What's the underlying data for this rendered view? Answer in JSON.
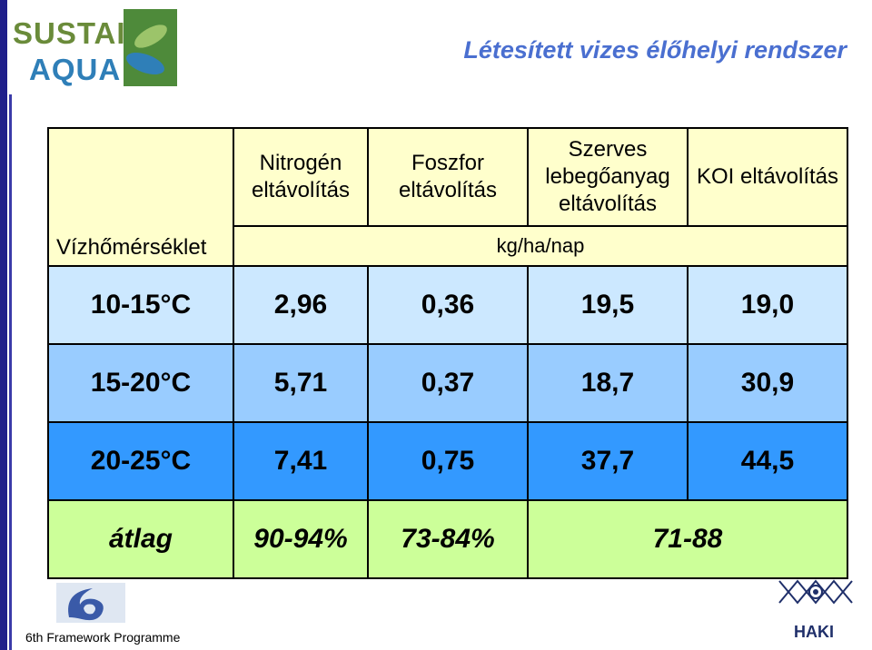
{
  "title": "Létesített vizes élőhelyi rendszer",
  "logo": {
    "line1": "SUSTAIN",
    "line2": "AQUA"
  },
  "table": {
    "corner": "Vízhőmérséklet",
    "headers": [
      "Nitrogén eltávolítás",
      "Foszfor eltávolítás",
      "Szerves lebegőanyag eltávolítás",
      "KOI eltávolítás"
    ],
    "unit": "kg/ha/nap",
    "rows": [
      {
        "label": "10-15°C",
        "values": [
          "2,96",
          "0,36",
          "19,5",
          "19,0"
        ]
      },
      {
        "label": "15-20°C",
        "values": [
          "5,71",
          "0,37",
          "18,7",
          "30,9"
        ]
      },
      {
        "label": "20-25°C",
        "values": [
          "7,41",
          "0,75",
          "37,7",
          "44,5"
        ]
      }
    ],
    "average": {
      "label": "átlag",
      "values": [
        "90-94%",
        "73-84%",
        "71-88"
      ]
    }
  },
  "footer": {
    "programme": "6th Framework Programme",
    "haki": "HAKI"
  }
}
